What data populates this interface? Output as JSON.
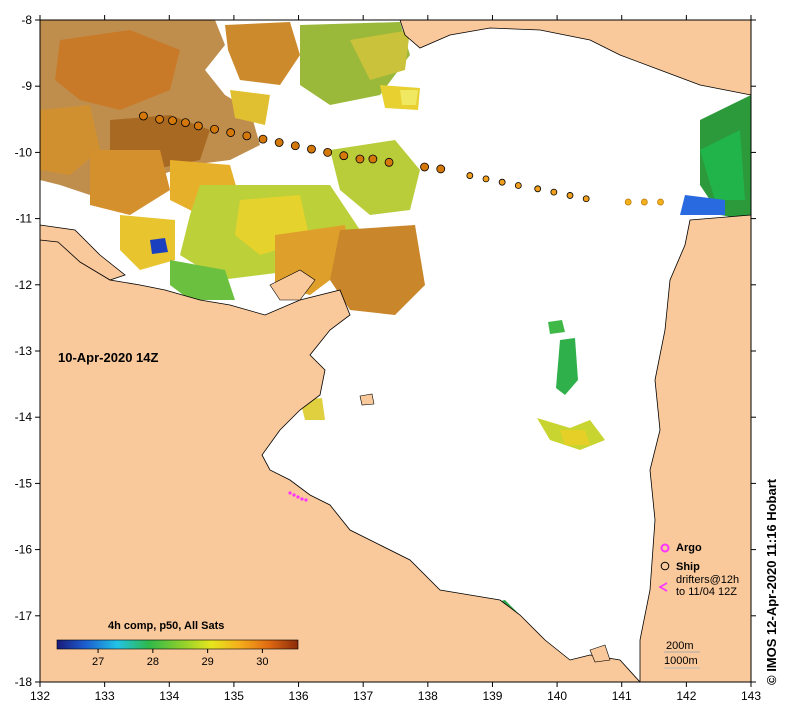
{
  "map": {
    "date_label": "10-Apr-2020 14Z",
    "credit": "© IMOS 12-Apr-2020 11:16 Hobart",
    "composite_label": "4h comp, p50, All Sats",
    "x_ticks": [
      "132",
      "133",
      "134",
      "135",
      "136",
      "137",
      "138",
      "139",
      "140",
      "141",
      "142",
      "143"
    ],
    "y_ticks": [
      "-8",
      "-9",
      "-10",
      "-11",
      "-12",
      "-13",
      "-14",
      "-15",
      "-16",
      "-17",
      "-18"
    ],
    "colorbar_ticks": [
      "27",
      "28",
      "29",
      "30"
    ],
    "legend": {
      "argo": "Argo",
      "ship": "Ship",
      "drifters_line1": "drifters@12h",
      "drifters_line2": "to 11/04 12Z"
    },
    "scale_labels": [
      "200m",
      "1000m"
    ],
    "colors": {
      "land": "#f9c89b",
      "ocean": "#ffffff",
      "argo": "#ff33ff",
      "drifter": "#ff33ff",
      "ship_dark": "#d4780a",
      "ship_light": "#f2b21e"
    },
    "ship_track": [
      {
        "lon": 133.6,
        "lat": -9.45
      },
      {
        "lon": 133.85,
        "lat": -9.5
      },
      {
        "lon": 134.05,
        "lat": -9.52
      },
      {
        "lon": 134.25,
        "lat": -9.55
      },
      {
        "lon": 134.45,
        "lat": -9.6
      },
      {
        "lon": 134.7,
        "lat": -9.65
      },
      {
        "lon": 134.95,
        "lat": -9.7
      },
      {
        "lon": 135.2,
        "lat": -9.75
      },
      {
        "lon": 135.45,
        "lat": -9.8
      },
      {
        "lon": 135.7,
        "lat": -9.85
      },
      {
        "lon": 135.95,
        "lat": -9.9
      },
      {
        "lon": 136.2,
        "lat": -9.95
      },
      {
        "lon": 136.45,
        "lat": -10.0
      },
      {
        "lon": 136.7,
        "lat": -10.05
      },
      {
        "lon": 136.95,
        "lat": -10.1
      },
      {
        "lon": 137.15,
        "lat": -10.1
      },
      {
        "lon": 137.4,
        "lat": -10.15
      },
      {
        "lon": 137.95,
        "lat": -10.22
      },
      {
        "lon": 138.2,
        "lat": -10.25
      },
      {
        "lon": 138.65,
        "lat": -10.35
      },
      {
        "lon": 138.9,
        "lat": -10.4
      },
      {
        "lon": 139.15,
        "lat": -10.45
      },
      {
        "lon": 139.4,
        "lat": -10.5
      },
      {
        "lon": 139.7,
        "lat": -10.55
      },
      {
        "lon": 139.95,
        "lat": -10.6
      },
      {
        "lon": 140.2,
        "lat": -10.65
      },
      {
        "lon": 140.45,
        "lat": -10.7
      },
      {
        "lon": 141.1,
        "lat": -10.75
      },
      {
        "lon": 141.35,
        "lat": -10.75
      },
      {
        "lon": 141.6,
        "lat": -10.75
      }
    ]
  }
}
